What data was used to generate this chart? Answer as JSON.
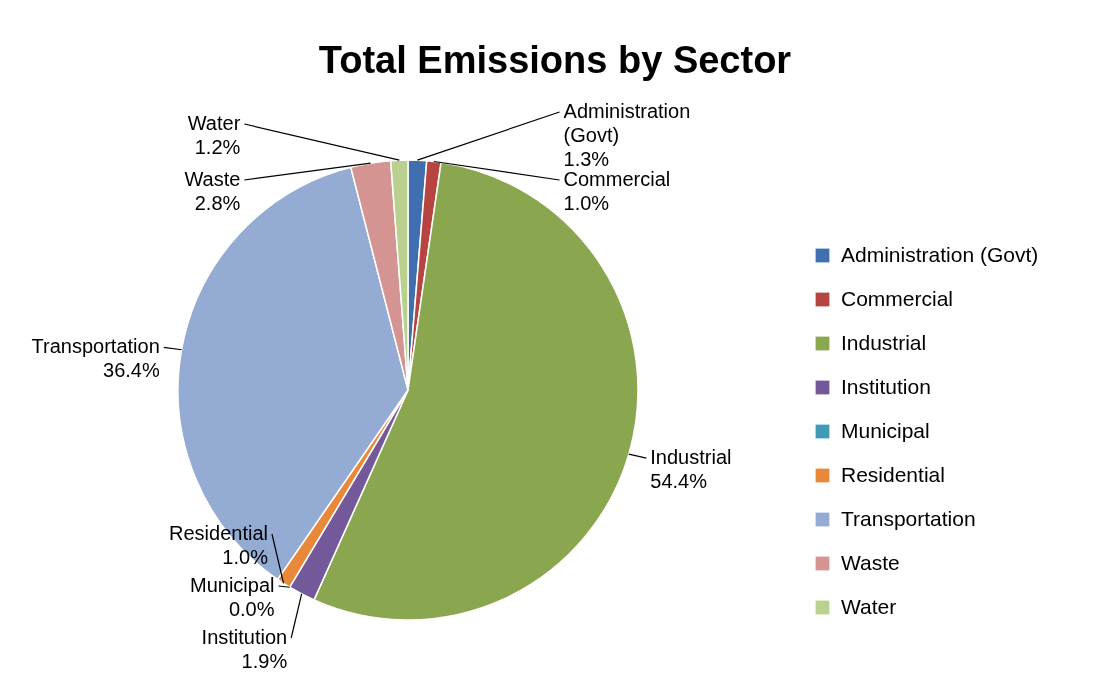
{
  "chart_data": {
    "type": "pie",
    "title": "Total Emissions by Sector",
    "categories": [
      "Administration (Govt)",
      "Commercial",
      "Industrial",
      "Institution",
      "Municipal",
      "Residential",
      "Transportation",
      "Waste",
      "Water"
    ],
    "values": [
      1.3,
      1.0,
      54.4,
      1.9,
      0.0,
      1.0,
      36.4,
      2.8,
      1.2
    ],
    "value_labels": [
      "1.3%",
      "1.0%",
      "54.4%",
      "1.9%",
      "0.0%",
      "1.0%",
      "36.4%",
      "2.8%",
      "1.2%"
    ],
    "colors": [
      "#3f6fae",
      "#b64441",
      "#8aa74f",
      "#73589a",
      "#3e9db5",
      "#e8883a",
      "#94abd3",
      "#d49492",
      "#b9d08f"
    ],
    "legend": "right"
  }
}
